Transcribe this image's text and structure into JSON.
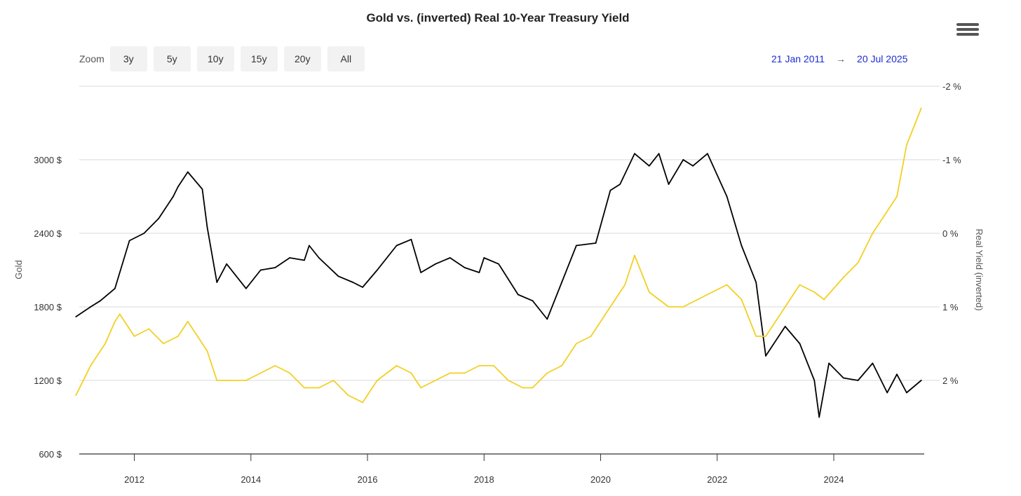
{
  "title": "Gold vs. (inverted) Real 10-Year Treasury Yield",
  "menu": {
    "icon": "hamburger-menu-icon"
  },
  "zoom": {
    "label": "Zoom",
    "buttons": [
      "3y",
      "5y",
      "10y",
      "15y",
      "20y",
      "All"
    ]
  },
  "range": {
    "from": "21 Jan 2011",
    "arrow": "→",
    "to": "20 Jul 2025"
  },
  "colors": {
    "gold": "#000000",
    "real_yield": "#f2d024",
    "range_text": "#1b2bd1"
  },
  "chart_data": {
    "type": "line",
    "title": "Gold vs. (inverted) Real 10-Year Treasury Yield",
    "x_range": [
      "2011-01-21",
      "2025-07-20"
    ],
    "x_ticks": [
      "2012",
      "2014",
      "2016",
      "2018",
      "2020",
      "2022",
      "2024"
    ],
    "left_axis": {
      "label": "Gold",
      "ylim": [
        600,
        3600
      ],
      "ticks": [
        "600 $",
        "1200 $",
        "1800 $",
        "2400 $",
        "3000 $"
      ]
    },
    "right_axis": {
      "label": "Real Yield (inverted)",
      "inverted": true,
      "ylim": [
        -2,
        3
      ],
      "ticks": [
        "-2 %",
        "-1 %",
        "0 %",
        "1 %",
        "2 %"
      ]
    },
    "grid": true,
    "series": [
      {
        "name": "Gold",
        "axis": "left",
        "color": "#000000",
        "x": [
          "2011-01",
          "2011-04",
          "2011-06",
          "2011-09",
          "2011-12",
          "2012-03",
          "2012-06",
          "2012-09",
          "2012-10",
          "2012-12",
          "2013-03",
          "2013-04",
          "2013-06",
          "2013-08",
          "2013-12",
          "2014-03",
          "2014-06",
          "2014-09",
          "2014-12",
          "2015-01",
          "2015-03",
          "2015-07",
          "2015-10",
          "2015-12",
          "2016-03",
          "2016-07",
          "2016-10",
          "2016-12",
          "2017-03",
          "2017-06",
          "2017-09",
          "2017-12",
          "2018-01",
          "2018-04",
          "2018-08",
          "2018-11",
          "2019-02",
          "2019-05",
          "2019-08",
          "2019-12",
          "2020-03",
          "2020-05",
          "2020-08",
          "2020-11",
          "2021-01",
          "2021-03",
          "2021-06",
          "2021-08",
          "2021-11",
          "2022-03",
          "2022-06",
          "2022-09",
          "2022-11",
          "2023-03",
          "2023-06",
          "2023-09",
          "2023-10",
          "2023-12",
          "2024-03",
          "2024-06",
          "2024-09",
          "2024-12",
          "2025-02",
          "2025-04",
          "2025-07"
        ],
        "y": [
          1720,
          1800,
          1850,
          1950,
          2340,
          2400,
          2520,
          2700,
          2780,
          2900,
          2760,
          2450,
          2000,
          2150,
          1950,
          2100,
          2120,
          2200,
          2180,
          2300,
          2200,
          2050,
          2000,
          1960,
          2100,
          2300,
          2350,
          2080,
          2150,
          2200,
          2120,
          2080,
          2200,
          2150,
          1900,
          1850,
          1700,
          2000,
          2300,
          2320,
          2750,
          2800,
          3050,
          2950,
          3050,
          2800,
          3000,
          2950,
          3050,
          2700,
          2300,
          2000,
          1400,
          1640,
          1500,
          1200,
          900,
          1340,
          1220,
          1200,
          1340,
          1100,
          1250,
          1100,
          1200
        ]
      },
      {
        "name": "Real Yield (inverted)",
        "axis": "right",
        "color": "#f2d024",
        "x": [
          "2011-01",
          "2011-04",
          "2011-07",
          "2011-09",
          "2011-10",
          "2012-01",
          "2012-04",
          "2012-07",
          "2012-10",
          "2012-12",
          "2013-04",
          "2013-06",
          "2013-09",
          "2013-12",
          "2014-03",
          "2014-06",
          "2014-09",
          "2014-12",
          "2015-03",
          "2015-06",
          "2015-09",
          "2015-12",
          "2016-03",
          "2016-07",
          "2016-10",
          "2016-12",
          "2017-03",
          "2017-06",
          "2017-09",
          "2017-12",
          "2018-03",
          "2018-06",
          "2018-09",
          "2018-11",
          "2019-02",
          "2019-05",
          "2019-08",
          "2019-11",
          "2020-02",
          "2020-04",
          "2020-06",
          "2020-08",
          "2020-11",
          "2021-03",
          "2021-06",
          "2021-09",
          "2021-12",
          "2022-03",
          "2022-06",
          "2022-09",
          "2022-11",
          "2023-03",
          "2023-06",
          "2023-09",
          "2023-11",
          "2024-03",
          "2024-06",
          "2024-09",
          "2024-12",
          "2025-02",
          "2025-04",
          "2025-07"
        ],
        "y": [
          2.2,
          1.8,
          1.5,
          1.2,
          1.1,
          1.4,
          1.3,
          1.5,
          1.4,
          1.2,
          1.6,
          2.0,
          2.0,
          2.0,
          1.9,
          1.8,
          1.9,
          2.1,
          2.1,
          2.0,
          2.2,
          2.3,
          2.0,
          1.8,
          1.9,
          2.1,
          2.0,
          1.9,
          1.9,
          1.8,
          1.8,
          2.0,
          2.1,
          2.1,
          1.9,
          1.8,
          1.5,
          1.4,
          1.1,
          0.9,
          0.7,
          0.3,
          0.8,
          1.0,
          1.0,
          0.9,
          0.8,
          0.7,
          0.9,
          1.4,
          1.4,
          1.0,
          0.7,
          0.8,
          0.9,
          0.6,
          0.4,
          0.0,
          -0.3,
          -0.5,
          -1.2,
          -1.7
        ]
      }
    ]
  }
}
